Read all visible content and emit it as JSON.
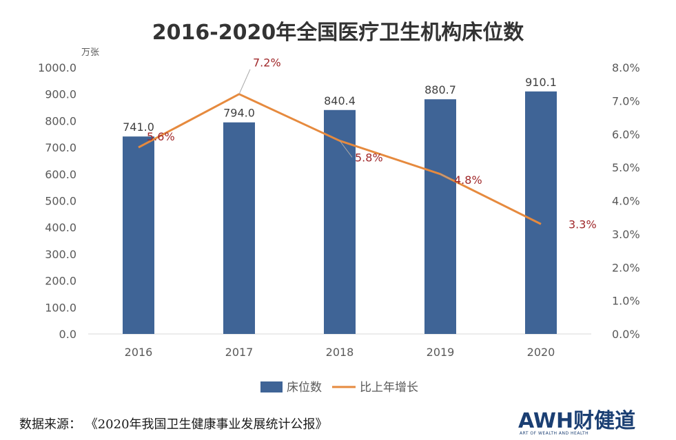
{
  "chart_data": {
    "type": "bar",
    "title": "2016-2020年全国医疗卫生机构床位数",
    "y_unit": "万张",
    "categories": [
      "2016",
      "2017",
      "2018",
      "2019",
      "2020"
    ],
    "series": [
      {
        "name": "床位数",
        "type": "bar",
        "axis": "left",
        "values": [
          741.0,
          794.0,
          840.4,
          880.7,
          910.1
        ],
        "labels": [
          "741.0",
          "794.0",
          "840.4",
          "880.7",
          "910.1"
        ]
      },
      {
        "name": "比上年增长",
        "type": "line",
        "axis": "right",
        "values": [
          5.6,
          7.2,
          5.8,
          4.8,
          3.3
        ],
        "labels": [
          "5.6%",
          "7.2%",
          "5.8%",
          "4.8%",
          "3.3%"
        ]
      }
    ],
    "left_axis": {
      "ylim": [
        0,
        1000
      ],
      "ticks": [
        "0.0",
        "100.0",
        "200.0",
        "300.0",
        "400.0",
        "500.0",
        "600.0",
        "700.0",
        "800.0",
        "900.0",
        "1000.0"
      ]
    },
    "right_axis": {
      "ylim": [
        0,
        8
      ],
      "ticks": [
        "0.0%",
        "1.0%",
        "2.0%",
        "3.0%",
        "4.0%",
        "5.0%",
        "6.0%",
        "7.0%",
        "8.0%"
      ]
    },
    "grid": false,
    "legend_position": "bottom",
    "colors": {
      "bar": "#3f6496",
      "line": "#e68a3e",
      "line_label": "#a0282a",
      "axis_text": "#595959"
    }
  },
  "footer": {
    "source": "数据来源：  《2020年我国卫生健康事业发展统计公报》",
    "logo_text": "AWH财健道",
    "logo_subtext": "ART OF WEALTH AND HEALTH"
  }
}
